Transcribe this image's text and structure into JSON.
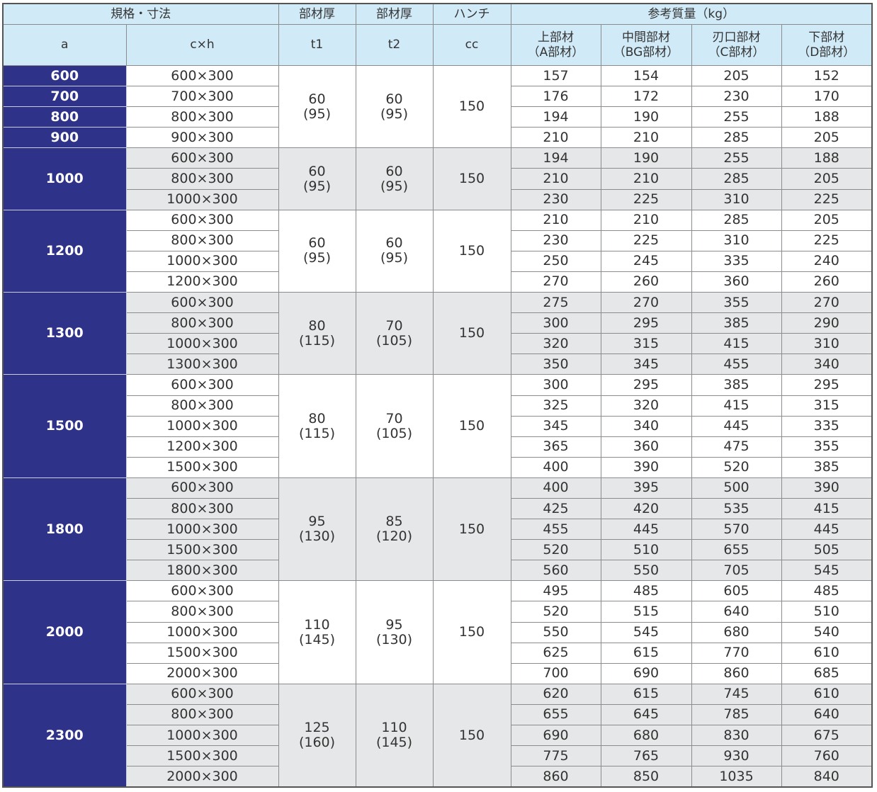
{
  "header": {
    "spec": "規格・寸法",
    "thickness1": "部材厚",
    "thickness2": "部材厚",
    "haunch": "ハンチ",
    "mass": "参考質量（kg）",
    "a": "a",
    "cxh": "c×h",
    "t1": "t1",
    "t2": "t2",
    "cc": "cc",
    "upper": "上部材\n（A部材）",
    "middle": "中間部材\n（BG部材）",
    "edge": "刃口部材\n（C部材）",
    "lower": "下部材\n（D部材）"
  },
  "colors": {
    "header_bg": "#d1eaf7",
    "a_column_bg": "#2e3288",
    "alt_row_bg": "#e6e7e8"
  },
  "groups": [
    {
      "a": null,
      "t1": "60\n(95)",
      "t2": "60\n(95)",
      "cc": "150",
      "rows": [
        {
          "a": "600",
          "cxh": "600×300",
          "m": [
            "157",
            "154",
            "205",
            "152"
          ]
        },
        {
          "a": "700",
          "cxh": "700×300",
          "m": [
            "176",
            "172",
            "230",
            "170"
          ]
        },
        {
          "a": "800",
          "cxh": "800×300",
          "m": [
            "194",
            "190",
            "255",
            "188"
          ]
        },
        {
          "a": "900",
          "cxh": "900×300",
          "m": [
            "210",
            "210",
            "285",
            "205"
          ]
        }
      ]
    },
    {
      "a": "1000",
      "t1": "60\n(95)",
      "t2": "60\n(95)",
      "cc": "150",
      "rows": [
        {
          "cxh": "600×300",
          "m": [
            "194",
            "190",
            "255",
            "188"
          ]
        },
        {
          "cxh": "800×300",
          "m": [
            "210",
            "210",
            "285",
            "205"
          ]
        },
        {
          "cxh": "1000×300",
          "m": [
            "230",
            "225",
            "310",
            "225"
          ]
        }
      ]
    },
    {
      "a": "1200",
      "t1": "60\n(95)",
      "t2": "60\n(95)",
      "cc": "150",
      "rows": [
        {
          "cxh": "600×300",
          "m": [
            "210",
            "210",
            "285",
            "205"
          ]
        },
        {
          "cxh": "800×300",
          "m": [
            "230",
            "225",
            "310",
            "225"
          ]
        },
        {
          "cxh": "1000×300",
          "m": [
            "250",
            "245",
            "335",
            "240"
          ]
        },
        {
          "cxh": "1200×300",
          "m": [
            "270",
            "260",
            "360",
            "260"
          ]
        }
      ]
    },
    {
      "a": "1300",
      "t1": "80\n(115)",
      "t2": "70\n(105)",
      "cc": "150",
      "rows": [
        {
          "cxh": "600×300",
          "m": [
            "275",
            "270",
            "355",
            "270"
          ]
        },
        {
          "cxh": "800×300",
          "m": [
            "300",
            "295",
            "385",
            "290"
          ]
        },
        {
          "cxh": "1000×300",
          "m": [
            "320",
            "315",
            "415",
            "310"
          ]
        },
        {
          "cxh": "1300×300",
          "m": [
            "350",
            "345",
            "455",
            "340"
          ]
        }
      ]
    },
    {
      "a": "1500",
      "t1": "80\n(115)",
      "t2": "70\n(105)",
      "cc": "150",
      "rows": [
        {
          "cxh": "600×300",
          "m": [
            "300",
            "295",
            "385",
            "295"
          ]
        },
        {
          "cxh": "800×300",
          "m": [
            "325",
            "320",
            "415",
            "315"
          ]
        },
        {
          "cxh": "1000×300",
          "m": [
            "345",
            "340",
            "445",
            "335"
          ]
        },
        {
          "cxh": "1200×300",
          "m": [
            "365",
            "360",
            "475",
            "355"
          ]
        },
        {
          "cxh": "1500×300",
          "m": [
            "400",
            "390",
            "520",
            "385"
          ]
        }
      ]
    },
    {
      "a": "1800",
      "t1": "95\n(130)",
      "t2": "85\n(120)",
      "cc": "150",
      "rows": [
        {
          "cxh": "600×300",
          "m": [
            "400",
            "395",
            "500",
            "390"
          ]
        },
        {
          "cxh": "800×300",
          "m": [
            "425",
            "420",
            "535",
            "415"
          ]
        },
        {
          "cxh": "1000×300",
          "m": [
            "455",
            "445",
            "570",
            "445"
          ]
        },
        {
          "cxh": "1500×300",
          "m": [
            "520",
            "510",
            "655",
            "505"
          ]
        },
        {
          "cxh": "1800×300",
          "m": [
            "560",
            "550",
            "705",
            "545"
          ]
        }
      ]
    },
    {
      "a": "2000",
      "t1": "110\n(145)",
      "t2": "95\n(130)",
      "cc": "150",
      "rows": [
        {
          "cxh": "600×300",
          "m": [
            "495",
            "485",
            "605",
            "485"
          ]
        },
        {
          "cxh": "800×300",
          "m": [
            "520",
            "515",
            "640",
            "510"
          ]
        },
        {
          "cxh": "1000×300",
          "m": [
            "550",
            "545",
            "680",
            "540"
          ]
        },
        {
          "cxh": "1500×300",
          "m": [
            "625",
            "615",
            "770",
            "610"
          ]
        },
        {
          "cxh": "2000×300",
          "m": [
            "700",
            "690",
            "860",
            "685"
          ]
        }
      ]
    },
    {
      "a": "2300",
      "t1": "125\n(160)",
      "t2": "110\n(145)",
      "cc": "150",
      "rows": [
        {
          "cxh": "600×300",
          "m": [
            "620",
            "615",
            "745",
            "610"
          ]
        },
        {
          "cxh": "800×300",
          "m": [
            "655",
            "645",
            "785",
            "640"
          ]
        },
        {
          "cxh": "1000×300",
          "m": [
            "690",
            "680",
            "830",
            "675"
          ]
        },
        {
          "cxh": "1500×300",
          "m": [
            "775",
            "765",
            "930",
            "760"
          ]
        },
        {
          "cxh": "2000×300",
          "m": [
            "860",
            "850",
            "1035",
            "840"
          ]
        }
      ]
    }
  ]
}
